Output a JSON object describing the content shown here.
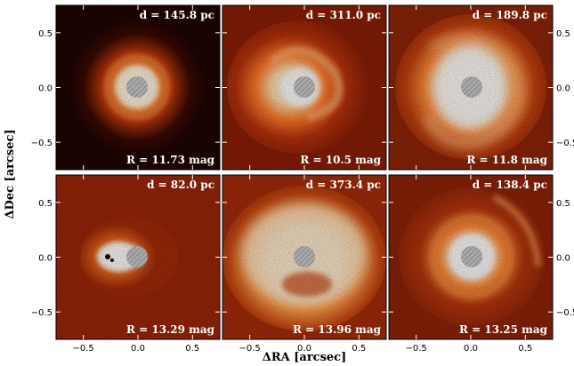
{
  "figure": {
    "xlabel": "ΔRA [arcsec]",
    "ylabel": "ΔDec [arcsec]",
    "x_ticks": [
      "−0.5",
      "0.0",
      "0.5"
    ],
    "y_ticks": [
      "0.5",
      "0.0",
      "−0.5"
    ],
    "x_tick_values": [
      -0.5,
      0.0,
      0.5
    ],
    "y_tick_values": [
      0.5,
      0.0,
      -0.5
    ],
    "axis_range": [
      -0.75,
      0.75
    ],
    "colors": {
      "background": "#7a1a05",
      "disk": "#ff8a3a",
      "bright": "#fff6e6",
      "coronagraph": "#9a9a9a"
    },
    "panels": [
      {
        "distance": "d = 145.8 pc",
        "magnitude": "R = 11.73 mag",
        "morphology": "ring"
      },
      {
        "distance": "d = 311.0 pc",
        "magnitude": "R = 10.5 mag",
        "morphology": "spiral"
      },
      {
        "distance": "d = 189.8 pc",
        "magnitude": "R = 11.8 mag",
        "morphology": "spiral-large"
      },
      {
        "distance": "d = 82.0 pc",
        "magnitude": "R = 13.29 mag",
        "morphology": "compact-companion"
      },
      {
        "distance": "d = 373.4 pc",
        "magnitude": "R = 13.96 mag",
        "morphology": "broad-disk"
      },
      {
        "distance": "d = 138.4 pc",
        "magnitude": "R = 13.25 mag",
        "morphology": "rings-arc"
      }
    ]
  }
}
